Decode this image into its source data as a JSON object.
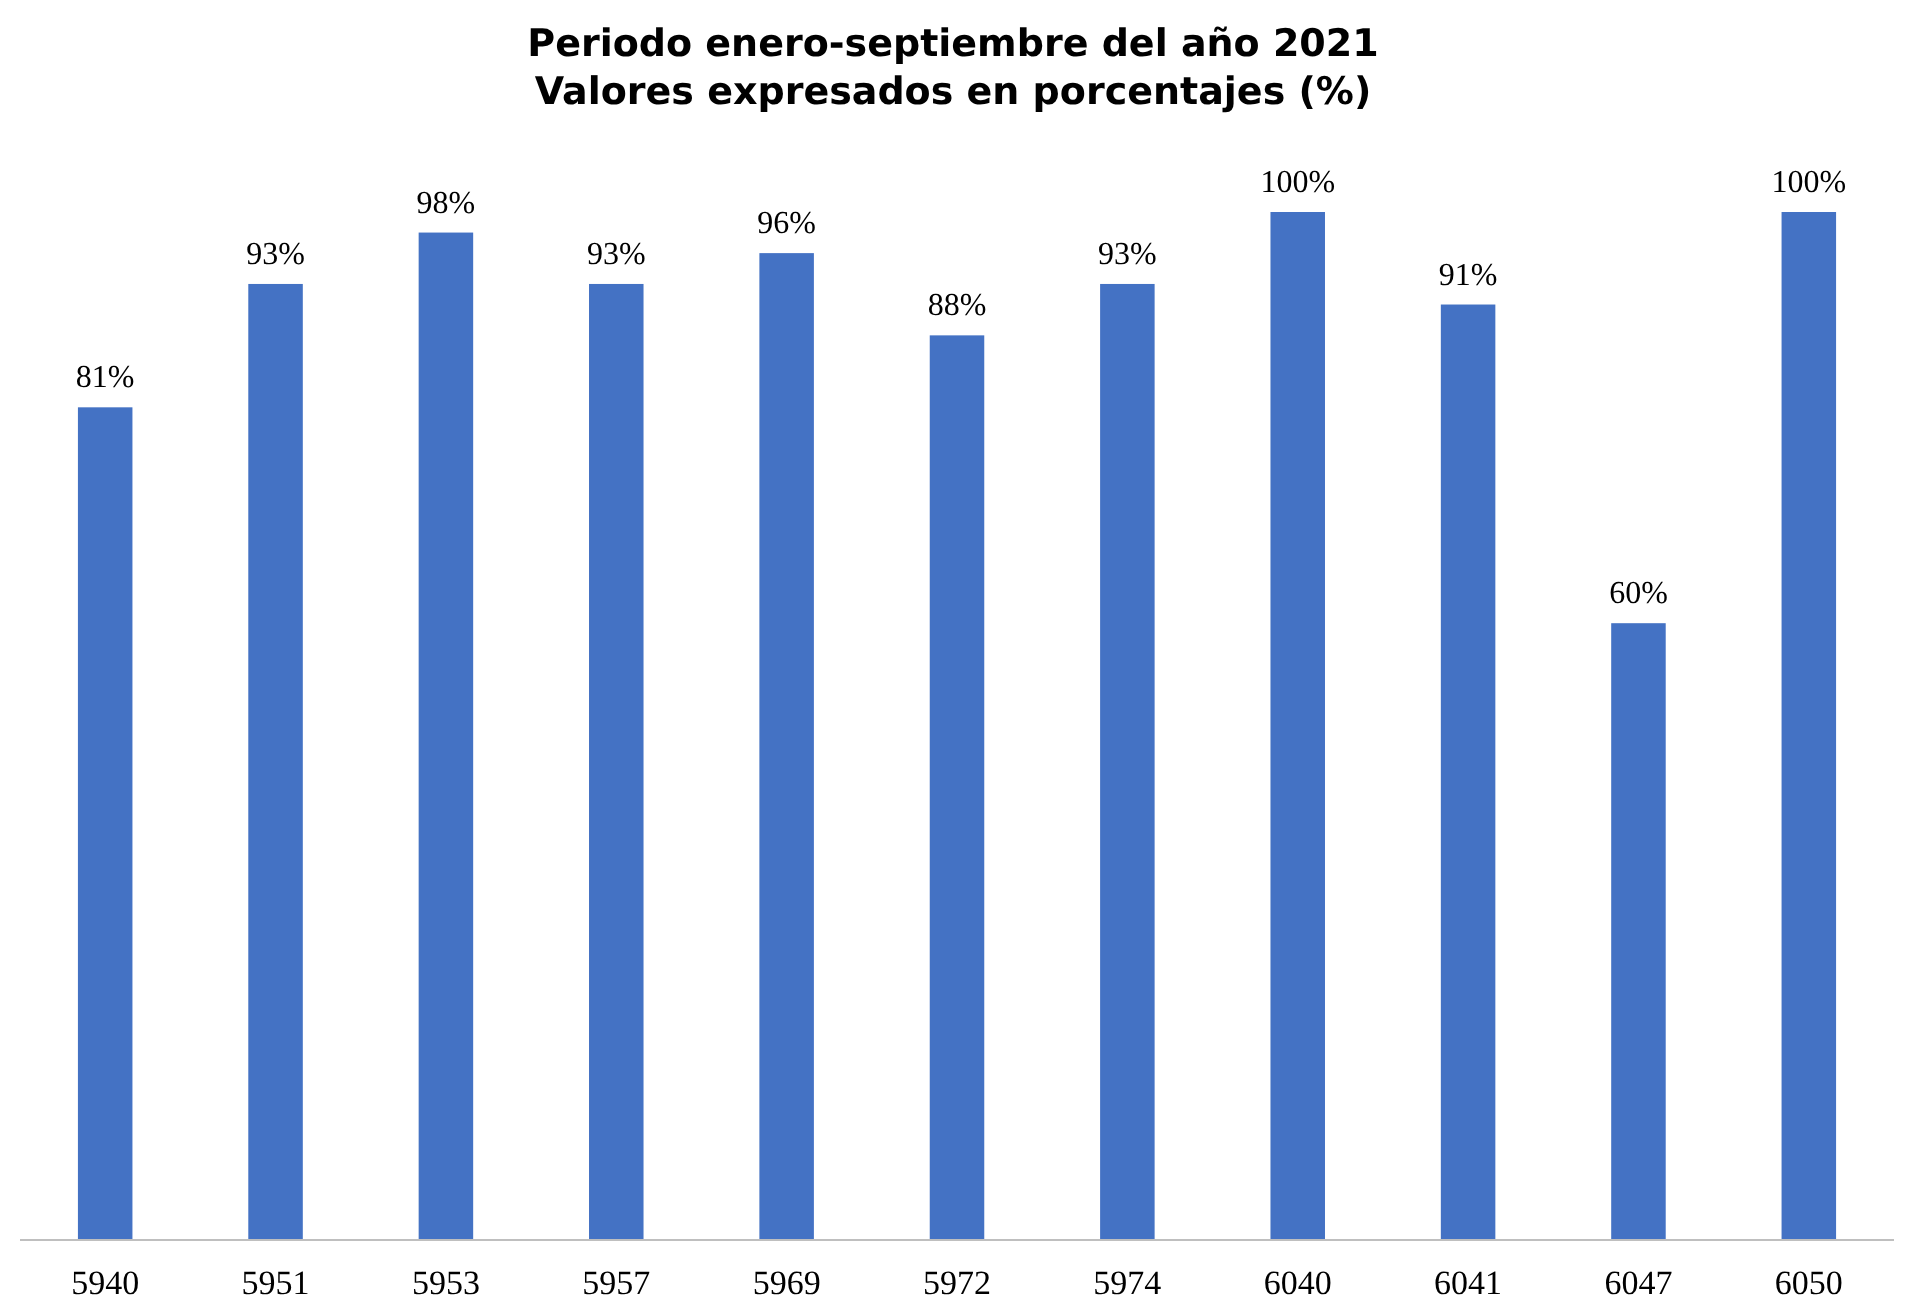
{
  "chart_data": {
    "type": "bar",
    "title": "Periodo enero-septiembre del año 2021\nValores expresados en porcentajes (%)",
    "categories": [
      "5940",
      "5951",
      "5953",
      "5957",
      "5969",
      "5972",
      "5974",
      "6040",
      "6041",
      "6047",
      "6050"
    ],
    "values": [
      81,
      93,
      98,
      93,
      96,
      88,
      93,
      100,
      91,
      60,
      100
    ],
    "value_labels": [
      "81%",
      "93%",
      "98%",
      "93%",
      "96%",
      "88%",
      "93%",
      "100%",
      "91%",
      "60%",
      "100%"
    ],
    "color": "#4472c4",
    "grid": false
  }
}
